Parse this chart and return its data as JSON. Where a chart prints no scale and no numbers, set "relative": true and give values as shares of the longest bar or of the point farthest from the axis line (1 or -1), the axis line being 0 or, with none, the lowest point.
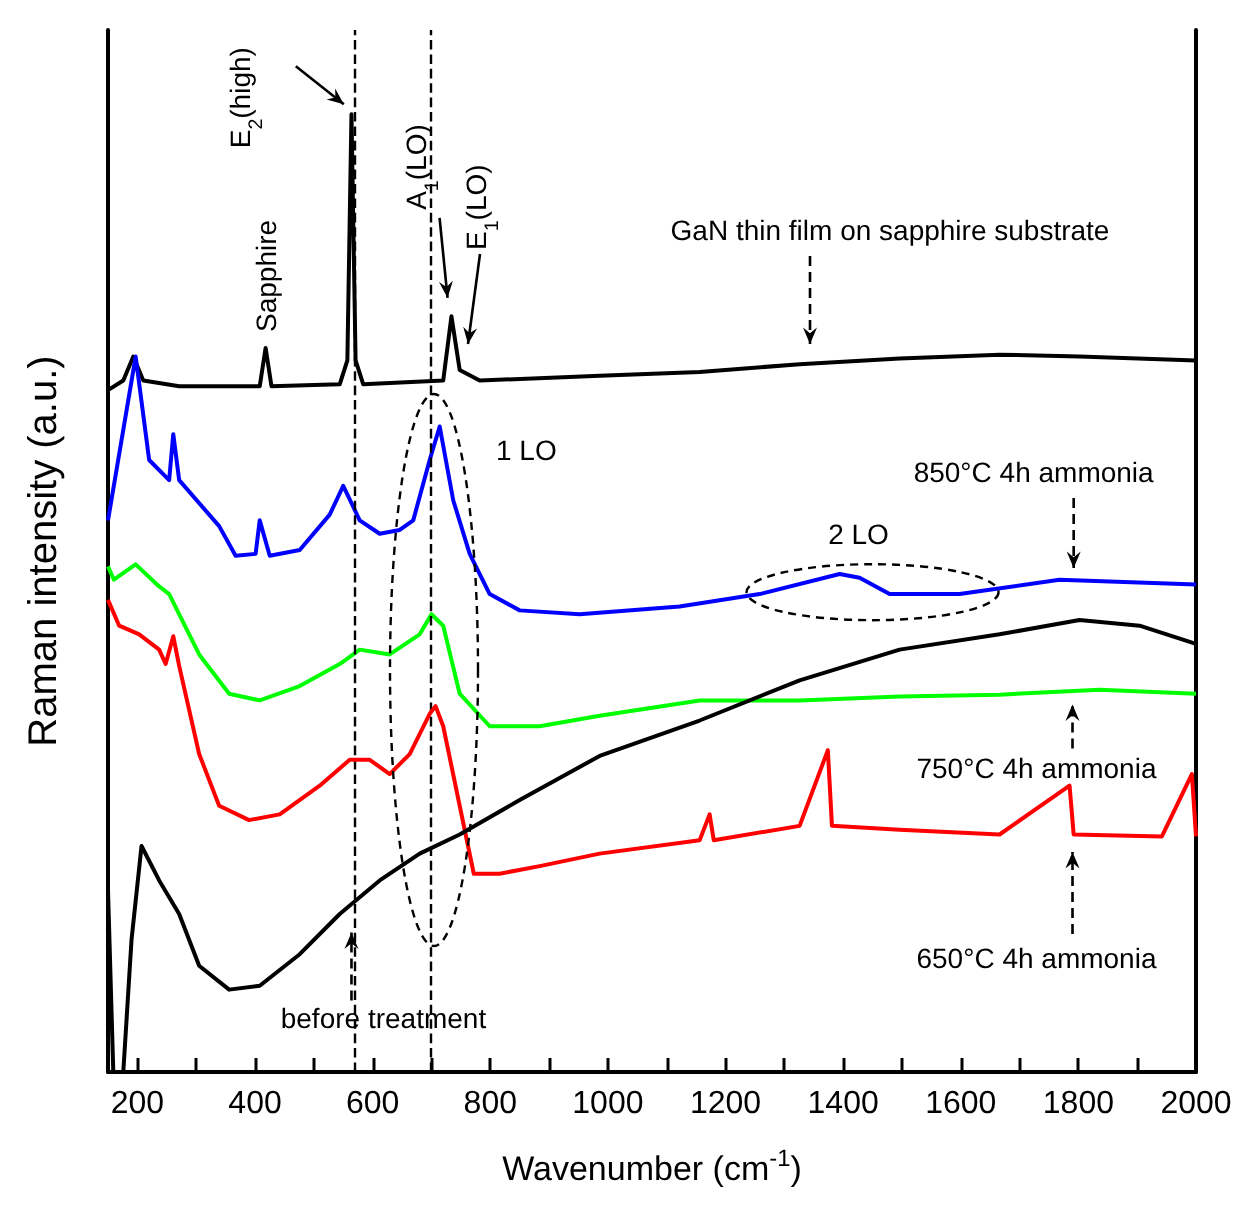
{
  "chart_data": {
    "type": "line",
    "relative": true,
    "xlabel": "Wavenumber (cm$^{-1}$)",
    "ylabel": "Raman intensity (a.u.)",
    "xlim": [
      150,
      2000
    ],
    "xticks": [
      200,
      {
        "value": 300,
        "label": null
      },
      400,
      {
        "value": 500,
        "label": null
      },
      600,
      {
        "value": 700,
        "label": null
      },
      800,
      {
        "value": 900,
        "label": null
      },
      1000,
      {
        "value": 1100,
        "label": null
      },
      1200,
      {
        "value": 1300,
        "label": null
      },
      1400,
      {
        "value": 1500,
        "label": null
      },
      1600,
      {
        "value": 1700,
        "label": null
      },
      1800,
      {
        "value": 1900,
        "label": null
      },
      2000
    ],
    "series": [
      {
        "color": "#000000",
        "x": [
          150,
          176,
          193,
          210,
          271,
          408,
          418,
          428,
          544,
          557,
          564,
          571,
          584,
          720,
          734,
          748,
          782,
          986,
          1156,
          1326,
          1496,
          1666,
          1802,
          2000
        ],
        "values": [
          0.712,
          0.722,
          0.747,
          0.722,
          0.716,
          0.716,
          0.756,
          0.716,
          0.718,
          0.743,
          1.0,
          0.743,
          0.718,
          0.722,
          0.789,
          0.733,
          0.722,
          0.727,
          0.731,
          0.739,
          0.745,
          0.749,
          0.747,
          0.743
        ]
      },
      {
        "color": "#0000ff",
        "x": [
          150,
          197,
          220,
          254,
          261,
          271,
          339,
          367,
          401,
          408,
          425,
          476,
          527,
          550,
          578,
          612,
          646,
          669,
          697,
          714,
          737,
          765,
          799,
          850,
          952,
          1122,
          1258,
          1394,
          1428,
          1479,
          1598,
          1768,
          2000
        ],
        "values": [
          0.576,
          0.747,
          0.639,
          0.618,
          0.666,
          0.618,
          0.57,
          0.539,
          0.541,
          0.576,
          0.539,
          0.545,
          0.582,
          0.612,
          0.576,
          0.562,
          0.566,
          0.576,
          0.639,
          0.674,
          0.597,
          0.541,
          0.499,
          0.482,
          0.478,
          0.486,
          0.499,
          0.52,
          0.516,
          0.499,
          0.499,
          0.514,
          0.509
        ]
      },
      {
        "color": "#00ff00",
        "x": [
          150,
          160,
          197,
          237,
          254,
          305,
          356,
          408,
          476,
          544,
          578,
          629,
          680,
          700,
          720,
          748,
          799,
          884,
          986,
          1156,
          1326,
          1496,
          1666,
          1836,
          2000
        ],
        "values": [
          0.528,
          0.514,
          0.53,
          0.507,
          0.499,
          0.436,
          0.395,
          0.388,
          0.403,
          0.426,
          0.441,
          0.436,
          0.457,
          0.478,
          0.466,
          0.395,
          0.361,
          0.361,
          0.372,
          0.388,
          0.388,
          0.392,
          0.394,
          0.399,
          0.395
        ]
      },
      {
        "color": "#ff0000",
        "x": [
          150,
          169,
          203,
          237,
          248,
          261,
          271,
          305,
          339,
          390,
          442,
          510,
          561,
          595,
          629,
          663,
          697,
          707,
          720,
          748,
          772,
          816,
          884,
          986,
          1156,
          1173,
          1180,
          1326,
          1374,
          1381,
          1496,
          1666,
          1785,
          1792,
          1942,
          1993,
          2000
        ],
        "values": [
          0.493,
          0.466,
          0.457,
          0.441,
          0.426,
          0.455,
          0.424,
          0.332,
          0.278,
          0.263,
          0.269,
          0.299,
          0.326,
          0.326,
          0.311,
          0.332,
          0.374,
          0.382,
          0.361,
          0.278,
          0.207,
          0.207,
          0.215,
          0.228,
          0.242,
          0.269,
          0.242,
          0.257,
          0.336,
          0.257,
          0.253,
          0.248,
          0.299,
          0.248,
          0.246,
          0.311,
          0.246
        ]
      },
      {
        "color": "#000000",
        "x": [
          150,
          159,
          176,
          190,
          207,
          237,
          271,
          305,
          356,
          408,
          476,
          544,
          612,
          680,
          748,
          850,
          986,
          1156,
          1326,
          1496,
          1666,
          1802,
          1904,
          2000
        ],
        "values": [
          0.19,
          0,
          0,
          0.138,
          0.236,
          0.2,
          0.165,
          0.111,
          0.086,
          0.09,
          0.123,
          0.165,
          0.2,
          0.228,
          0.248,
          0.284,
          0.33,
          0.367,
          0.409,
          0.441,
          0.457,
          0.472,
          0.466,
          0.447
        ]
      }
    ],
    "ref_lines": [
      {
        "axis": "x",
        "value": 568,
        "line_style": "dashed",
        "color": "#000000"
      },
      {
        "axis": "x",
        "value": 700,
        "line_style": "dashed",
        "color": "#000000"
      }
    ],
    "annotations": [
      {
        "text": "Sapphire",
        "x": 418,
        "y": 0.756
      },
      {
        "text": "E$_{2}$(high)",
        "x": 568,
        "y": 1.0
      },
      {
        "text": "A$_{1}$(LO)",
        "x": 724,
        "y": 0.8
      },
      "E$_{1}$(LO)",
      "GaN thin film on sapphire substrate",
      "1 LO",
      {
        "text": "2 LO",
        "x": 1450,
        "y": 0.501
      },
      {
        "text": "850°C 4h ammonia",
        "x": 1792,
        "y": 0.52
      },
      {
        "text": "750°C 4h ammonia",
        "x": 1790,
        "y": 0.39
      },
      {
        "text": "650°C 4h ammonia",
        "x": 1790,
        "y": 0.236
      },
      {
        "text": "before treatment",
        "x": 564,
        "y": 0.152
      }
    ]
  }
}
